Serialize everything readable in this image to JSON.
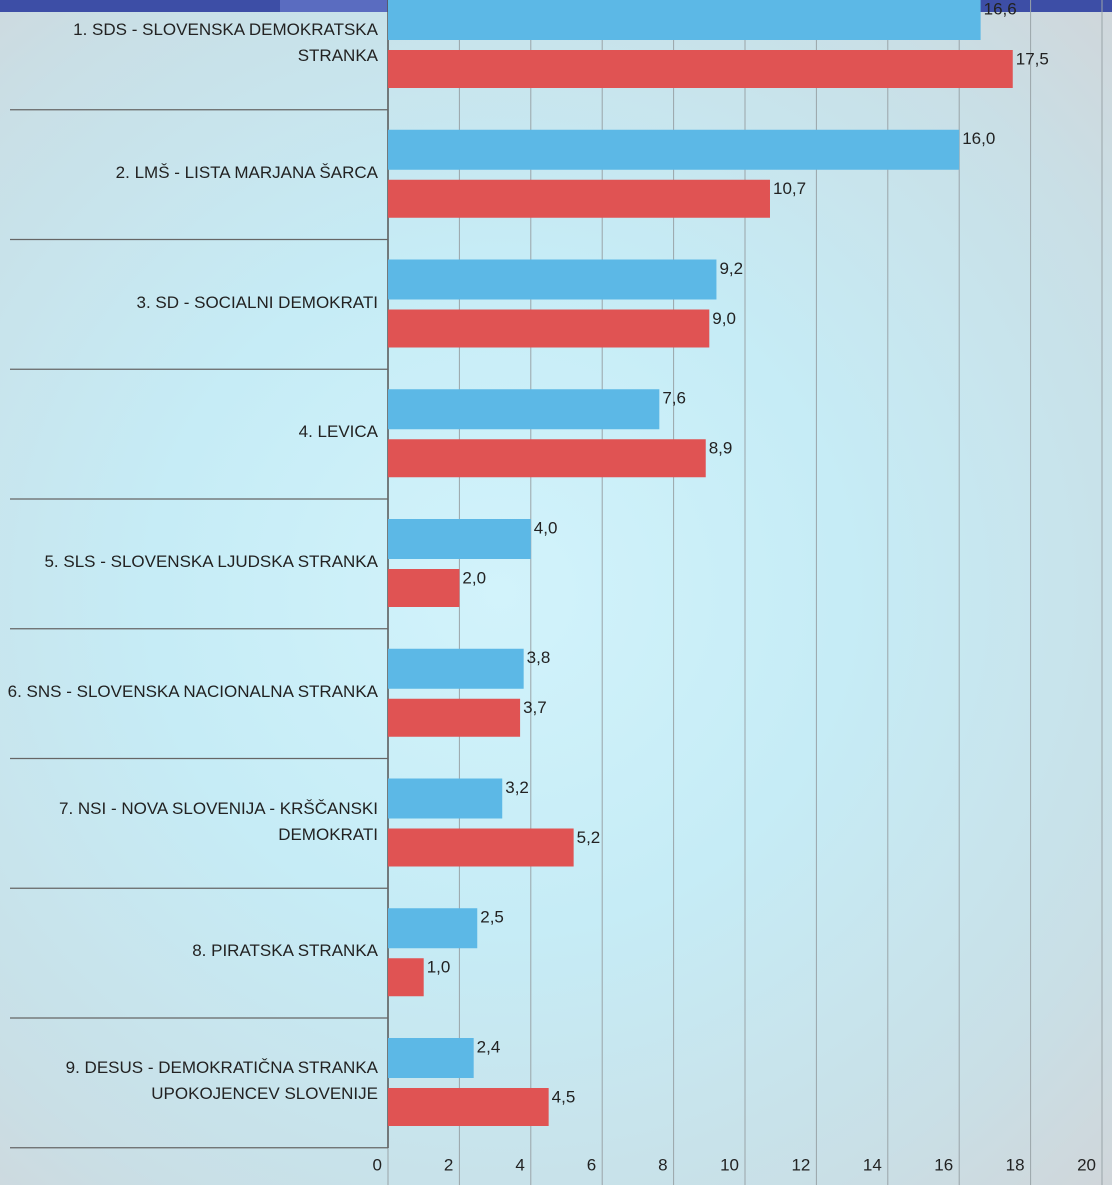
{
  "chart_data": {
    "type": "hbar",
    "categories": [
      "1. SDS - SLOVENSKA DEMOKRATSKA STRANKA",
      "2. LMŠ - LISTA MARJANA ŠARCA",
      "3. SD - SOCIALNI DEMOKRATI",
      "4. LEVICA",
      "5. SLS - SLOVENSKA LJUDSKA STRANKA",
      "6. SNS - SLOVENSKA NACIONALNA STRANKA",
      "7. NSI - NOVA SLOVENIJA - KRŠČANSKI DEMOKRATI",
      "8. PIRATSKA STRANKA",
      "9. DESUS - DEMOKRATIČNA STRANKA UPOKOJENCEV SLOVENIJE"
    ],
    "series": [
      {
        "color": "#5cb8e6",
        "values": [
          16.6,
          16.0,
          9.2,
          7.6,
          4.0,
          3.8,
          3.2,
          2.5,
          2.4
        ],
        "value_labels": [
          "16,6",
          "16,0",
          "9,2",
          "7,6",
          "4,0",
          "3,8",
          "3,2",
          "2,5",
          "2,4"
        ]
      },
      {
        "color": "#e05353",
        "values": [
          17.5,
          10.7,
          9.0,
          8.9,
          2.0,
          3.7,
          5.2,
          1.0,
          4.5
        ],
        "value_labels": [
          "17,5",
          "10,7",
          "9,0",
          "8,9",
          "2,0",
          "3,7",
          "5,2",
          "1,0",
          "4,5"
        ]
      }
    ],
    "xlim": [
      0,
      20
    ],
    "xticks": [
      0,
      2,
      4,
      6,
      8,
      10,
      12,
      14,
      16,
      18,
      20
    ],
    "grid": true
  }
}
